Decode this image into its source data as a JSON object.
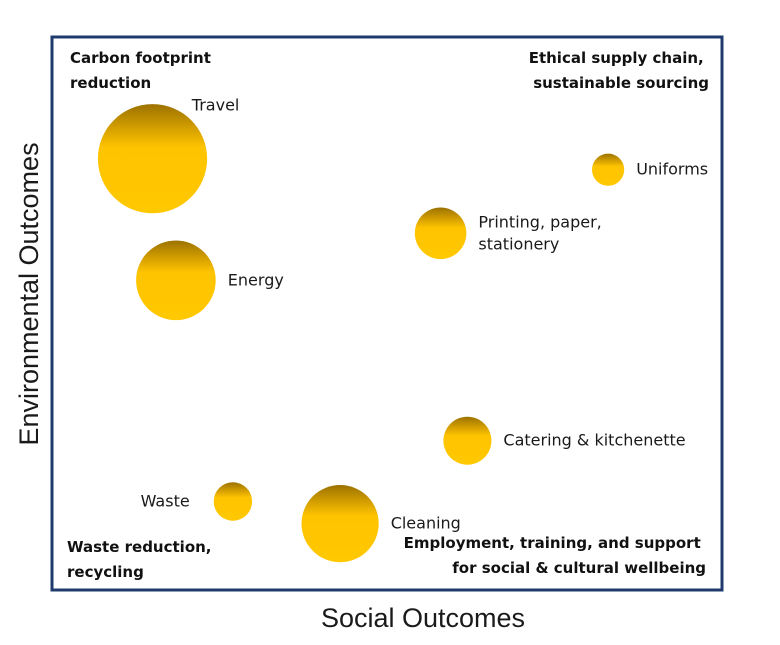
{
  "chart_data": {
    "type": "bubble",
    "xlabel": "Social Outcomes",
    "ylabel": "Environmental Outcomes",
    "colors": {
      "frame": "#1f3b6e",
      "bubble_light": "#ffd21a",
      "bubble_mid": "#ffbf00",
      "bubble_dark": "#b58600"
    },
    "quadrant_labels": {
      "top_left": [
        "Carbon footprint",
        "reduction"
      ],
      "top_right": [
        "Ethical supply chain,",
        "sustainable sourcing"
      ],
      "bottom_left": [
        "Waste reduction,",
        "recycling"
      ],
      "bottom_right": [
        "Employment, training, and support",
        "for social & cultural wellbeing"
      ]
    },
    "points": [
      {
        "label": [
          "Travel"
        ],
        "x": 0.15,
        "y": 0.78,
        "size": 3.0
      },
      {
        "label": [
          "Energy"
        ],
        "x": 0.185,
        "y": 0.56,
        "size": 1.6
      },
      {
        "label": [
          "Uniforms"
        ],
        "x": 0.83,
        "y": 0.76,
        "size": 0.26
      },
      {
        "label": [
          "Printing, paper,",
          "stationery"
        ],
        "x": 0.58,
        "y": 0.645,
        "size": 0.67
      },
      {
        "label": [
          "Catering & kitchenette"
        ],
        "x": 0.62,
        "y": 0.27,
        "size": 0.58
      },
      {
        "label": [
          "Waste"
        ],
        "x": 0.27,
        "y": 0.16,
        "size": 0.37
      },
      {
        "label": [
          "Cleaning"
        ],
        "x": 0.43,
        "y": 0.12,
        "size": 1.5
      }
    ]
  }
}
